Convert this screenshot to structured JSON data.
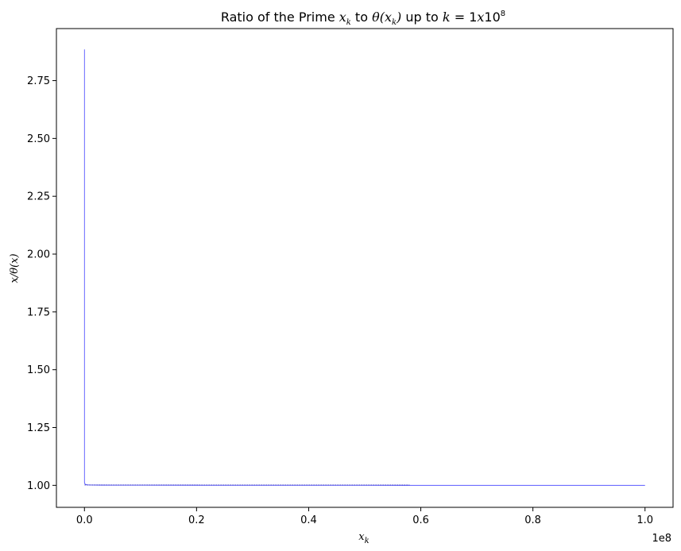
{
  "chart_data": {
    "type": "line",
    "title": {
      "prefix": "Ratio of the Prime ",
      "var_x": "x",
      "var_x_sub": "k",
      "mid": " to ",
      "theta": "θ(",
      "theta_x": "x",
      "theta_x_sub": "k",
      "theta_close": ")",
      "suffix": " up to ",
      "k_expr": "k",
      "equals": " = 1",
      "x_mult": "x",
      "ten": "10",
      "exp": "8"
    },
    "xlabel": {
      "var": "x",
      "sub": "k"
    },
    "ylabel": {
      "text": "x/θ(x)"
    },
    "x_offset_text": "1e8",
    "x_ticks": [
      "0.0",
      "0.2",
      "0.4",
      "0.6",
      "0.8",
      "1.0"
    ],
    "y_ticks": [
      "1.00",
      "1.25",
      "1.50",
      "1.75",
      "2.00",
      "2.25",
      "2.50",
      "2.75"
    ],
    "xlim": [
      -0.05,
      1.05
    ],
    "ylim": [
      0.905,
      2.975
    ],
    "grid": false,
    "series": [
      {
        "color": "#0000ff",
        "x": [
          0.0,
          0.0,
          0.001,
          0.002,
          0.003,
          0.005,
          0.01,
          0.02,
          0.05,
          0.1,
          0.2,
          0.3,
          0.4,
          0.5,
          0.6,
          0.7,
          0.8,
          0.9,
          1.0
        ],
        "y": [
          2.885,
          1.012,
          1.006,
          1.004,
          1.003,
          1.002,
          1.0015,
          1.001,
          1.0008,
          1.0006,
          1.0004,
          1.0003,
          1.0002,
          1.0002,
          1.0001,
          1.0001,
          1.0001,
          1.0001,
          1.0
        ]
      }
    ]
  }
}
